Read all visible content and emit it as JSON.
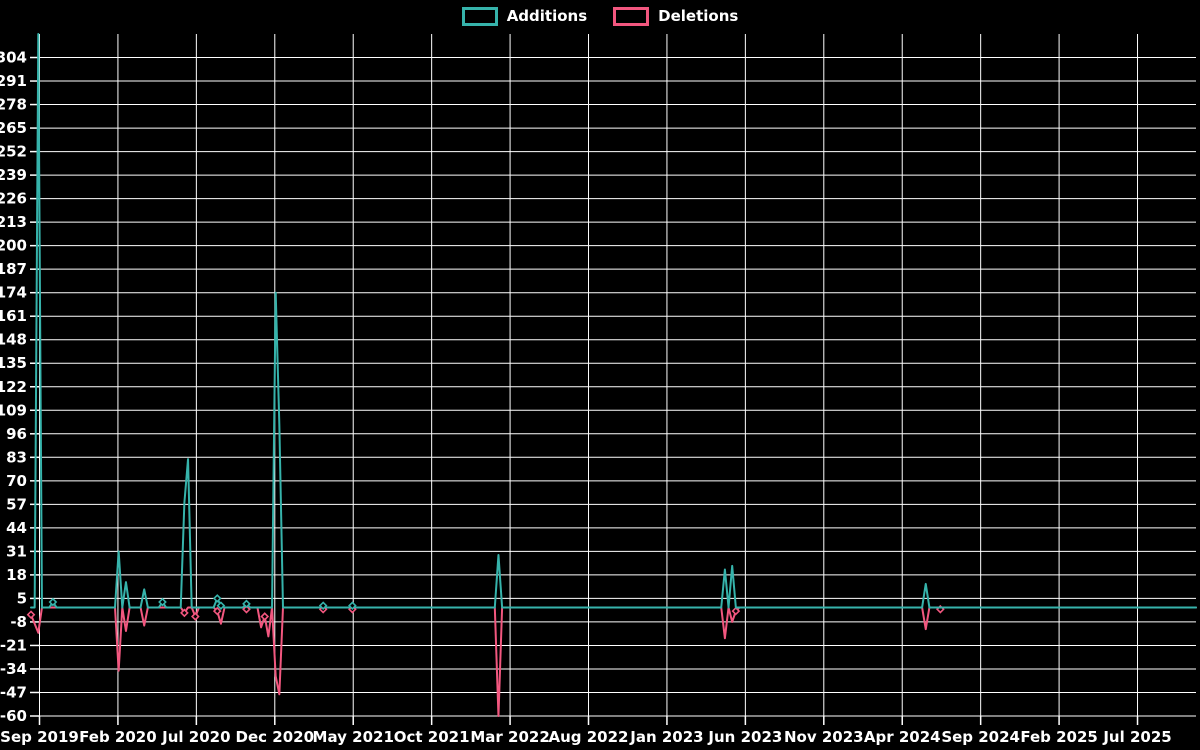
{
  "legend": {
    "items": [
      {
        "label": "Additions",
        "color": "#36b3ab"
      },
      {
        "label": "Deletions",
        "color": "#f2577f"
      }
    ]
  },
  "colors": {
    "background": "#000000",
    "grid": "#ffffff",
    "text": "#ffffff",
    "additions": "#36b3ab",
    "deletions": "#f2577f"
  },
  "chart_data": {
    "type": "line",
    "title": "",
    "xlabel": "",
    "ylabel": "",
    "legend_position": "top",
    "grid": true,
    "x_tick_labels": [
      "Sep 2019",
      "Feb 2020",
      "Jul 2020",
      "Dec 2020",
      "May 2021",
      "Oct 2021",
      "Mar 2022",
      "Aug 2022",
      "Jan 2023",
      "Jun 2023",
      "Nov 2023",
      "Apr 2024",
      "Sep 2024",
      "Feb 2025",
      "Jul 2025"
    ],
    "y_ticks": [
      304,
      291,
      278,
      265,
      252,
      239,
      226,
      213,
      200,
      187,
      174,
      161,
      148,
      135,
      122,
      109,
      96,
      83,
      70,
      57,
      44,
      31,
      18,
      5,
      -8,
      -21,
      -34,
      -47,
      -60
    ],
    "y_min": -60,
    "y_max": 317,
    "y_step": 13,
    "weeks_total": 320,
    "default_value": 0,
    "series": [
      {
        "name": "Additions",
        "color": "#36b3ab",
        "points": {
          "2": 317,
          "6": 3,
          "24": 31,
          "26": 14,
          "31": 10,
          "36": 3,
          "42": 58,
          "43": 82,
          "51": 5,
          "52": 1,
          "59": 2,
          "67": 174,
          "68": 101,
          "80": 1,
          "88": 1,
          "128": 29,
          "190": 21,
          "192": 23,
          "245": 13
        }
      },
      {
        "name": "Deletions",
        "color": "#f2577f",
        "points": {
          "0": -4,
          "1": -9,
          "2": -14,
          "24": -35,
          "26": -13,
          "31": -10,
          "42": -3,
          "45": -5,
          "51": -2,
          "52": -9,
          "59": -1,
          "63": -11,
          "64": -5,
          "65": -16,
          "67": -38,
          "68": -48,
          "80": -1,
          "88": -1,
          "128": -60,
          "190": -17,
          "192": -8,
          "193": -2,
          "245": -12,
          "249": -1
        }
      }
    ]
  }
}
